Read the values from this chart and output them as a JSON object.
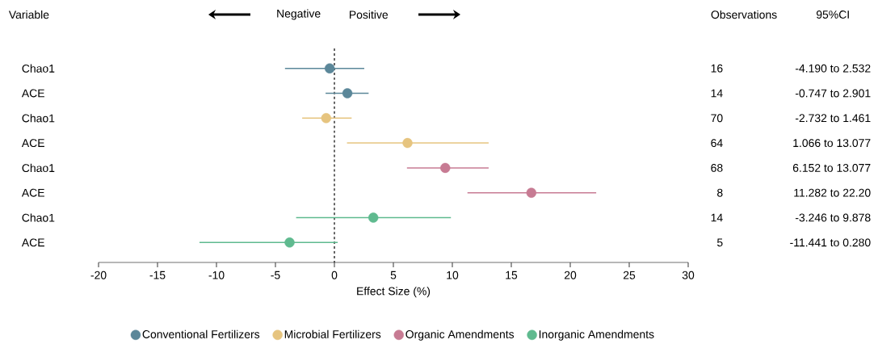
{
  "chart_data": {
    "type": "scatter",
    "orientation": "horizontal",
    "categories": [
      "Chao1",
      "ACE",
      "Chao1",
      "ACE",
      "Chao1",
      "ACE",
      "Chao1",
      "ACE"
    ],
    "series": [
      {
        "name": "Conventional Fertilizers",
        "color": "#5b8799",
        "values": [
          -0.4,
          1.1,
          null,
          null,
          null,
          null,
          null,
          null
        ],
        "errors": [
          [
            -4.19,
            2.532
          ],
          [
            -0.747,
            2.901
          ],
          null,
          null,
          null,
          null,
          null,
          null
        ]
      },
      {
        "name": "Microbial Fertilizers",
        "color": "#e6c47f",
        "values": [
          null,
          null,
          -0.7,
          6.2,
          null,
          null,
          null,
          null
        ],
        "errors": [
          null,
          null,
          [
            -2.732,
            1.461
          ],
          [
            1.066,
            13.077
          ],
          null,
          null,
          null,
          null
        ]
      },
      {
        "name": "Organic Amendments",
        "color": "#c77b93",
        "values": [
          null,
          null,
          null,
          null,
          9.4,
          16.7,
          null,
          null
        ],
        "errors": [
          null,
          null,
          null,
          null,
          [
            6.152,
            13.077
          ],
          [
            11.282,
            22.2
          ],
          null,
          null
        ]
      },
      {
        "name": "Inorganic Amendments",
        "color": "#5fba8f",
        "values": [
          null,
          null,
          null,
          null,
          null,
          null,
          3.3,
          -3.8
        ],
        "errors": [
          null,
          null,
          null,
          null,
          null,
          null,
          [
            -3.246,
            9.878
          ],
          [
            -11.441,
            0.28
          ]
        ]
      }
    ],
    "xlabel": "Effect Size (%)",
    "ylabel": "Variable",
    "xlim": [
      -20,
      30
    ],
    "xticks": [
      -20,
      -15,
      -10,
      -5,
      0,
      5,
      10,
      15,
      20,
      25,
      30
    ],
    "ref_lines": [
      {
        "axis": "x",
        "value": 0,
        "color": "#000000",
        "line_style": "dashed"
      }
    ],
    "annotations": [
      "Negative",
      "Positive",
      "Observations",
      "95%CI",
      "16",
      "14",
      "70",
      "64",
      "68",
      "8",
      "14",
      "5",
      "-4.190 to 2.532",
      "-0.747 to 2.901",
      "-2.732 to 1.461",
      "1.066 to 13.077",
      "6.152 to 13.077",
      "11.282 to 22.20",
      "-3.246 to 9.878",
      "-11.441 to 0.280"
    ],
    "legend": "bottom",
    "grid": false
  }
}
